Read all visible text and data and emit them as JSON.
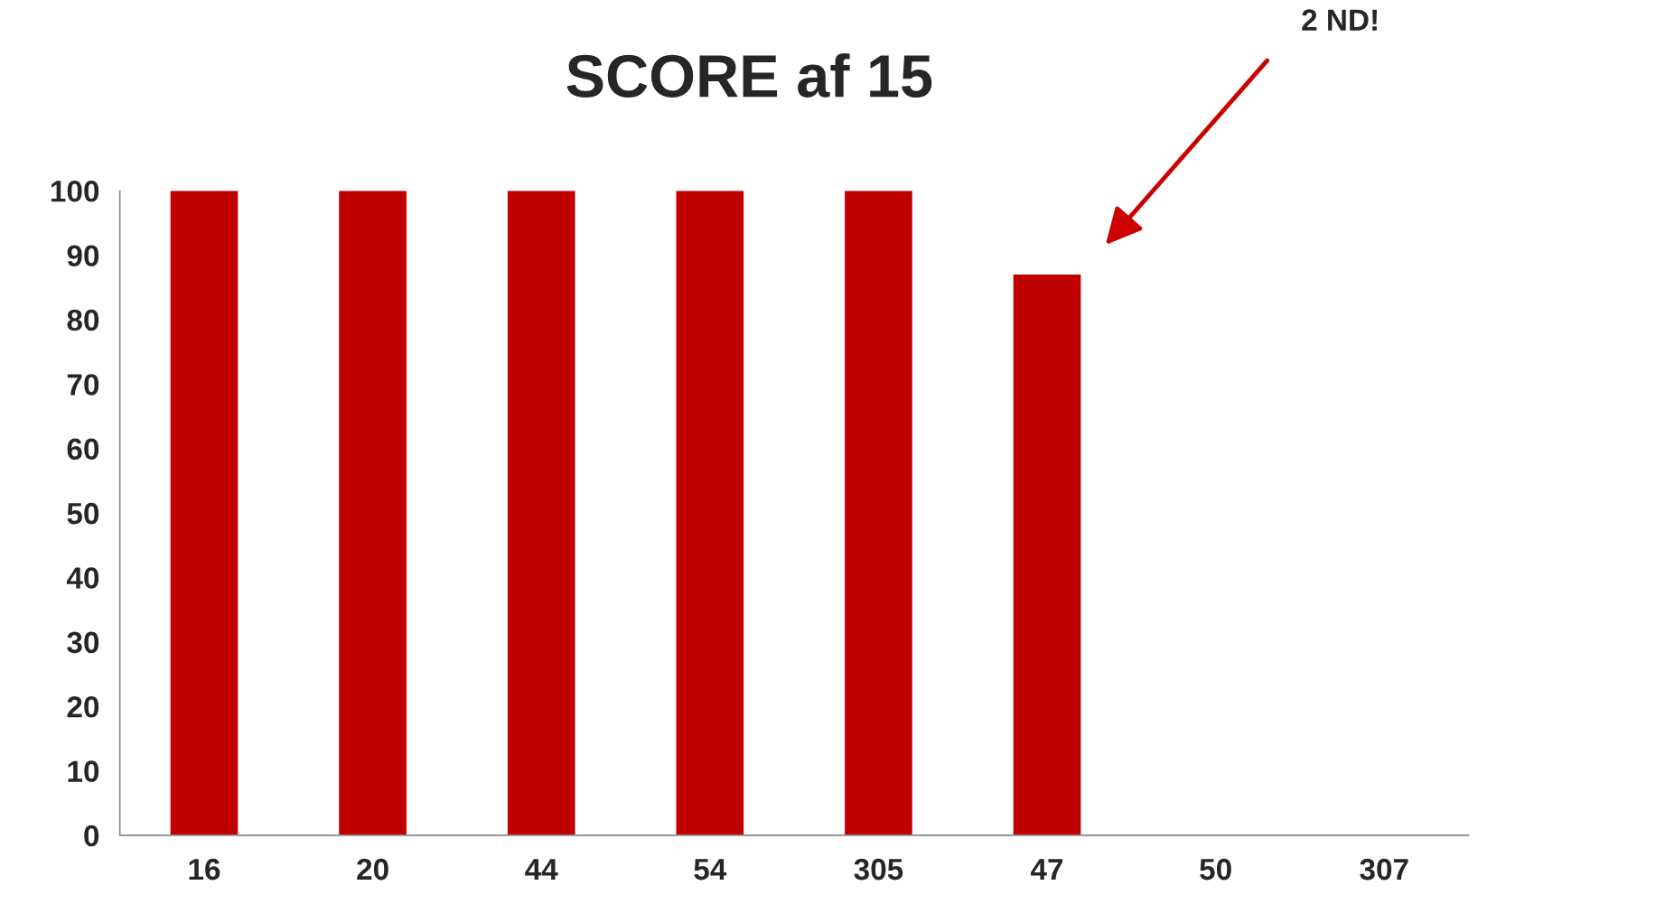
{
  "chart_data": {
    "type": "bar",
    "title": "SCORE af 15",
    "categories": [
      "16",
      "20",
      "44",
      "54",
      "305",
      "47",
      "50",
      "307"
    ],
    "values": [
      100,
      100,
      100,
      100,
      100,
      87,
      null,
      null
    ],
    "color": "#c00000",
    "ylim": [
      0,
      100
    ],
    "yticks": [
      0,
      10,
      20,
      30,
      40,
      50,
      60,
      70,
      80,
      90,
      100
    ],
    "grid": false,
    "annotations": [
      "2 ND!"
    ]
  }
}
